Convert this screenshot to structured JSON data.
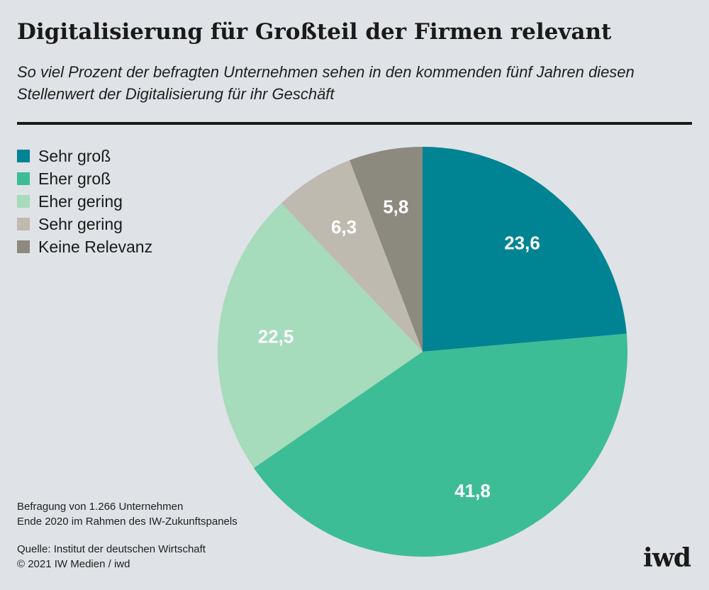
{
  "header": {
    "title": "Digitalisierung für Großteil der Firmen relevant",
    "subtitle": "So viel Prozent der befragten Unternehmen sehen in den kommenden fünf Jahren diesen Stellenwert der Digitalisierung für ihr Geschäft"
  },
  "chart_data": {
    "type": "pie",
    "title": "Digitalisierung für Großteil der Firmen relevant",
    "subtitle": "So viel Prozent der befragten Unternehmen sehen in den kommenden fünf Jahren diesen Stellenwert der Digitalisierung für ihr Geschäft",
    "unit": "Prozent",
    "legend_position": "top-left",
    "start": "12 o'clock, clockwise",
    "slices": [
      {
        "name": "Sehr groß",
        "value": 23.6,
        "label": "23,6",
        "color": "#008493"
      },
      {
        "name": "Eher groß",
        "value": 41.8,
        "label": "41,8",
        "color": "#3dbd96"
      },
      {
        "name": "Eher gering",
        "value": 22.5,
        "label": "22,5",
        "color": "#a6dbbb"
      },
      {
        "name": "Sehr gering",
        "value": 6.3,
        "label": "6,3",
        "color": "#bfbab0"
      },
      {
        "name": "Keine Relevanz",
        "value": 5.8,
        "label": "5,8",
        "color": "#8c8a7f"
      }
    ]
  },
  "footer": {
    "note_lines": [
      "Befragung von 1.266 Unternehmen",
      "Ende 2020 im Rahmen des IW-Zukunftspanels"
    ],
    "source_lines": [
      "Quelle: Institut der deutschen Wirtschaft",
      "© 2021 IW Medien / iwd"
    ],
    "logo": "iwd"
  }
}
